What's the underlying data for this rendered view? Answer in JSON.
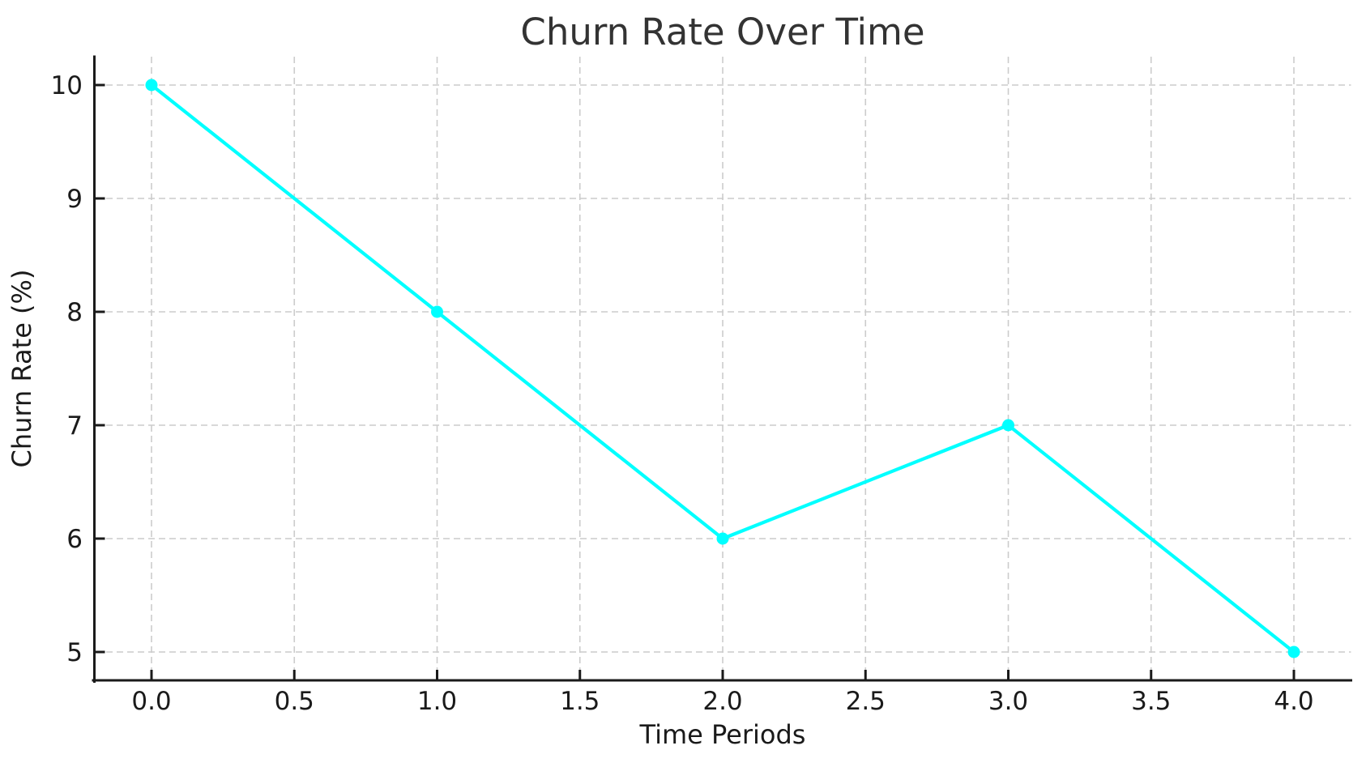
{
  "chart_data": {
    "type": "line",
    "title": "Churn Rate Over Time",
    "xlabel": "Time Periods",
    "ylabel": "Churn Rate (%)",
    "x": [
      0,
      1,
      2,
      3,
      4
    ],
    "y": [
      10,
      8,
      6,
      7,
      5
    ],
    "points": [
      {
        "x": 0,
        "y": 10
      },
      {
        "x": 1,
        "y": 8
      },
      {
        "x": 2,
        "y": 6
      },
      {
        "x": 3,
        "y": 7
      },
      {
        "x": 4,
        "y": 5
      }
    ],
    "xticks": {
      "values": [
        0,
        0.5,
        1,
        1.5,
        2,
        2.5,
        3,
        3.5,
        4
      ],
      "labels": [
        "0.0",
        "0.5",
        "1.0",
        "1.5",
        "2.0",
        "2.5",
        "3.0",
        "3.5",
        "4.0"
      ]
    },
    "yticks": {
      "values": [
        5,
        6,
        7,
        8,
        9,
        10
      ],
      "labels": [
        "5",
        "6",
        "7",
        "8",
        "9",
        "10"
      ]
    },
    "xlim": [
      -0.2,
      4.2
    ],
    "ylim": [
      4.75,
      10.25
    ],
    "grid": true,
    "grid_style": "dashed",
    "legend": false,
    "marker": "circle",
    "colors": {
      "line": "#00ffff",
      "marker": "#00ffff",
      "grid": "#cccccc",
      "spine": "#1a1a1a",
      "tick_text": "#1a1a1a",
      "title_text": "#333333",
      "background": "#ffffff"
    }
  }
}
